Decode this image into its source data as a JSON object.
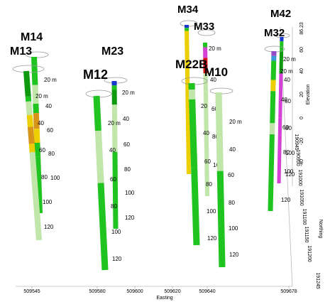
{
  "chart_data": {
    "type": "3d-borehole-logs",
    "xlabel": "Easting",
    "ylabel": "Northing",
    "zlabel": "Elevation",
    "x_ticks": [
      "509545",
      "509580",
      "509600",
      "509620",
      "509640",
      "509678"
    ],
    "y_ticks": [
      "190945",
      "190950",
      "191000",
      "191050",
      "191100",
      "191150",
      "191200",
      "191245"
    ],
    "z_ticks": [
      "86.23",
      "60",
      "40",
      "20",
      "0",
      "-20",
      "-40"
    ],
    "depth_unit": "m",
    "wells": [
      {
        "name": "M14",
        "depth_labels": [
          "20 m",
          "40",
          "60",
          "80",
          "100"
        ]
      },
      {
        "name": "M13",
        "depth_labels": [
          "20 m",
          "40",
          "60",
          "80",
          "100",
          "120"
        ]
      },
      {
        "name": "M23",
        "depth_labels": [
          "20 m",
          "40",
          "60",
          "80",
          "100",
          "120"
        ]
      },
      {
        "name": "M12",
        "depth_labels": [
          "20 m",
          "40",
          "60",
          "80",
          "100",
          "120"
        ]
      },
      {
        "name": "M34",
        "depth_labels": []
      },
      {
        "name": "M33",
        "depth_labels": [
          "20 m",
          "40",
          "60",
          "80",
          "100"
        ]
      },
      {
        "name": "M22B",
        "depth_labels": [
          "20",
          "40",
          "60",
          "80",
          "100",
          "120"
        ]
      },
      {
        "name": "M10",
        "depth_labels": [
          "20 m",
          "40",
          "60",
          "80",
          "100",
          "120"
        ]
      },
      {
        "name": "M42",
        "depth_labels": [
          "20 m",
          "40",
          "60",
          "80",
          "100",
          "120"
        ]
      },
      {
        "name": "M32",
        "depth_labels": [
          "20 m",
          "40",
          "60",
          "80",
          "100",
          "120"
        ]
      }
    ]
  }
}
